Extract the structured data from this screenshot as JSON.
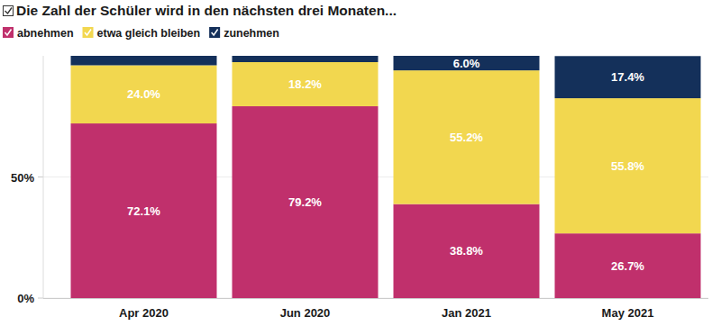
{
  "chart_data": {
    "type": "bar",
    "title": "Die Zahl der Schüler wird in den nächsten drei Monaten...",
    "categories": [
      "Apr 2020",
      "Jun 2020",
      "Jan 2021",
      "May 2021"
    ],
    "series": [
      {
        "name": "abnehmen",
        "color": "#c0306c",
        "values": [
          72.1,
          79.2,
          38.8,
          26.7
        ],
        "value_labels": [
          "72.1%",
          "79.2%",
          "38.8%",
          "26.7%"
        ]
      },
      {
        "name": "etwa gleich bleiben",
        "color": "#f2d74f",
        "values": [
          24.0,
          18.2,
          55.2,
          55.8
        ],
        "value_labels": [
          "24.0%",
          "18.2%",
          "55.2%",
          "55.8%"
        ]
      },
      {
        "name": "zunehmen",
        "color": "#14305a",
        "values": [
          3.9,
          2.6,
          6.0,
          17.4
        ],
        "value_labels": [
          null,
          null,
          "6.0%",
          "17.4%"
        ]
      }
    ],
    "ylim": [
      0,
      100
    ],
    "yticks": [
      {
        "value": 0,
        "label": "0%"
      },
      {
        "value": 50,
        "label": "50%"
      }
    ],
    "stacked": true,
    "grid": true,
    "legend": "top-left",
    "data_labels": true
  }
}
